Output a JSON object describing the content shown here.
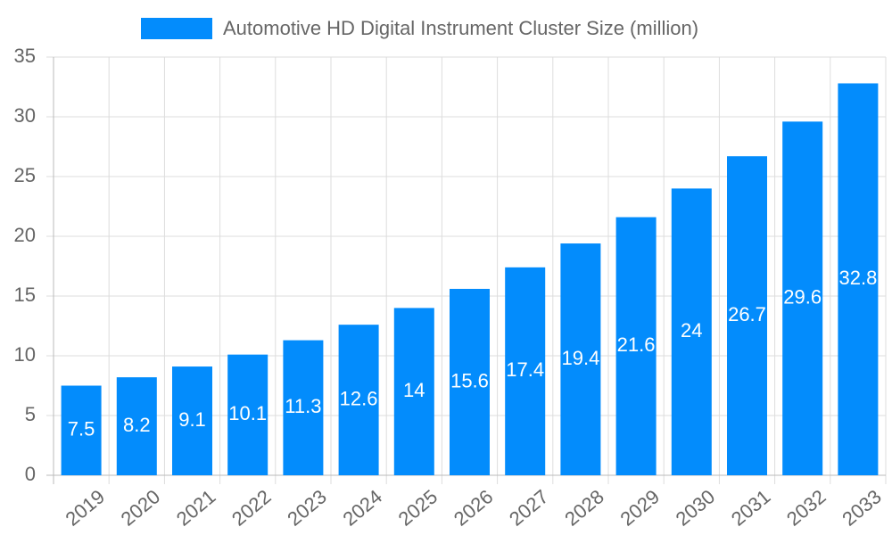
{
  "chart_data": {
    "type": "bar",
    "categories": [
      "2019",
      "2020",
      "2021",
      "2022",
      "2023",
      "2024",
      "2025",
      "2026",
      "2027",
      "2028",
      "2029",
      "2030",
      "2031",
      "2032",
      "2033"
    ],
    "series": [
      {
        "name": "Automotive HD Digital Instrument Cluster Size (million)",
        "color": "#038cfc",
        "values": [
          7.5,
          8.2,
          9.1,
          10.1,
          11.3,
          12.6,
          14,
          15.6,
          17.4,
          19.4,
          21.6,
          24,
          26.7,
          29.6,
          32.8
        ]
      }
    ],
    "ylim": [
      0,
      35
    ],
    "yticks": [
      0,
      5,
      10,
      15,
      20,
      25,
      30,
      35
    ],
    "grid": true,
    "legend": "top"
  }
}
